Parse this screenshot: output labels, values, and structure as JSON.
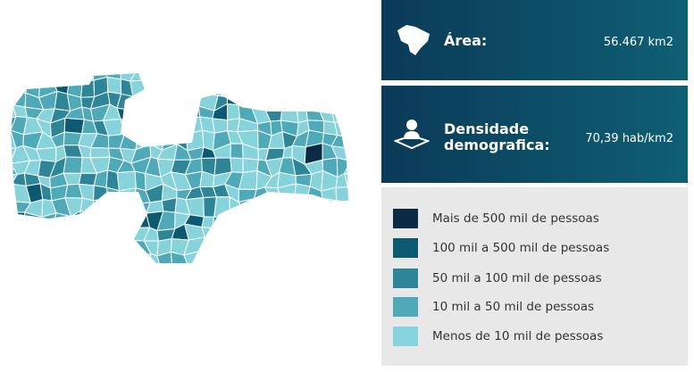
{
  "panels": [
    {
      "label": "Área:",
      "value": "56.467 km2"
    },
    {
      "label": "Densidade demografica:",
      "value": "70,39 hab/km2"
    }
  ],
  "legend": [
    {
      "label": "Mais de 500 mil de pessoas",
      "color": "#0b2a44"
    },
    {
      "label": "100 mil a 500 mil de pessoas",
      "color": "#0c5a72"
    },
    {
      "label": "50 mil a 100 mil de pessoas",
      "color": "#2e8597"
    },
    {
      "label": "10 mil a 50 mil de pessoas",
      "color": "#4ea9b8"
    },
    {
      "label": "Menos de 10 mil de pessoas",
      "color": "#86d3dc"
    }
  ]
}
